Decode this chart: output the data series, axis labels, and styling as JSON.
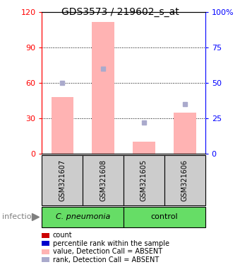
{
  "title": "GDS3573 / 219602_s_at",
  "samples": [
    "GSM321607",
    "GSM321608",
    "GSM321605",
    "GSM321606"
  ],
  "bar_values": [
    48,
    112,
    10,
    35
  ],
  "rank_values": [
    50,
    60,
    22,
    35
  ],
  "ylim_left": [
    0,
    120
  ],
  "ylim_right": [
    0,
    100
  ],
  "yticks_left": [
    0,
    30,
    60,
    90,
    120
  ],
  "yticks_right": [
    0,
    25,
    50,
    75,
    100
  ],
  "yticklabels_left": [
    "0",
    "30",
    "60",
    "90",
    "120"
  ],
  "yticklabels_right": [
    "0",
    "25",
    "50",
    "75",
    "100%"
  ],
  "bar_color": "#FFB3B3",
  "rank_color": "#AAAACC",
  "group_sample_bg": "#CCCCCC",
  "group_green": "#66DD66",
  "cpn_label": "C. pneumonia",
  "ctrl_label": "control",
  "infection_label": "infection",
  "legend_labels": [
    "count",
    "percentile rank within the sample",
    "value, Detection Call = ABSENT",
    "rank, Detection Call = ABSENT"
  ],
  "legend_colors": [
    "#CC0000",
    "#0000CC",
    "#FFB3B3",
    "#AAAACC"
  ],
  "figsize": [
    3.4,
    3.84
  ],
  "dpi": 100
}
